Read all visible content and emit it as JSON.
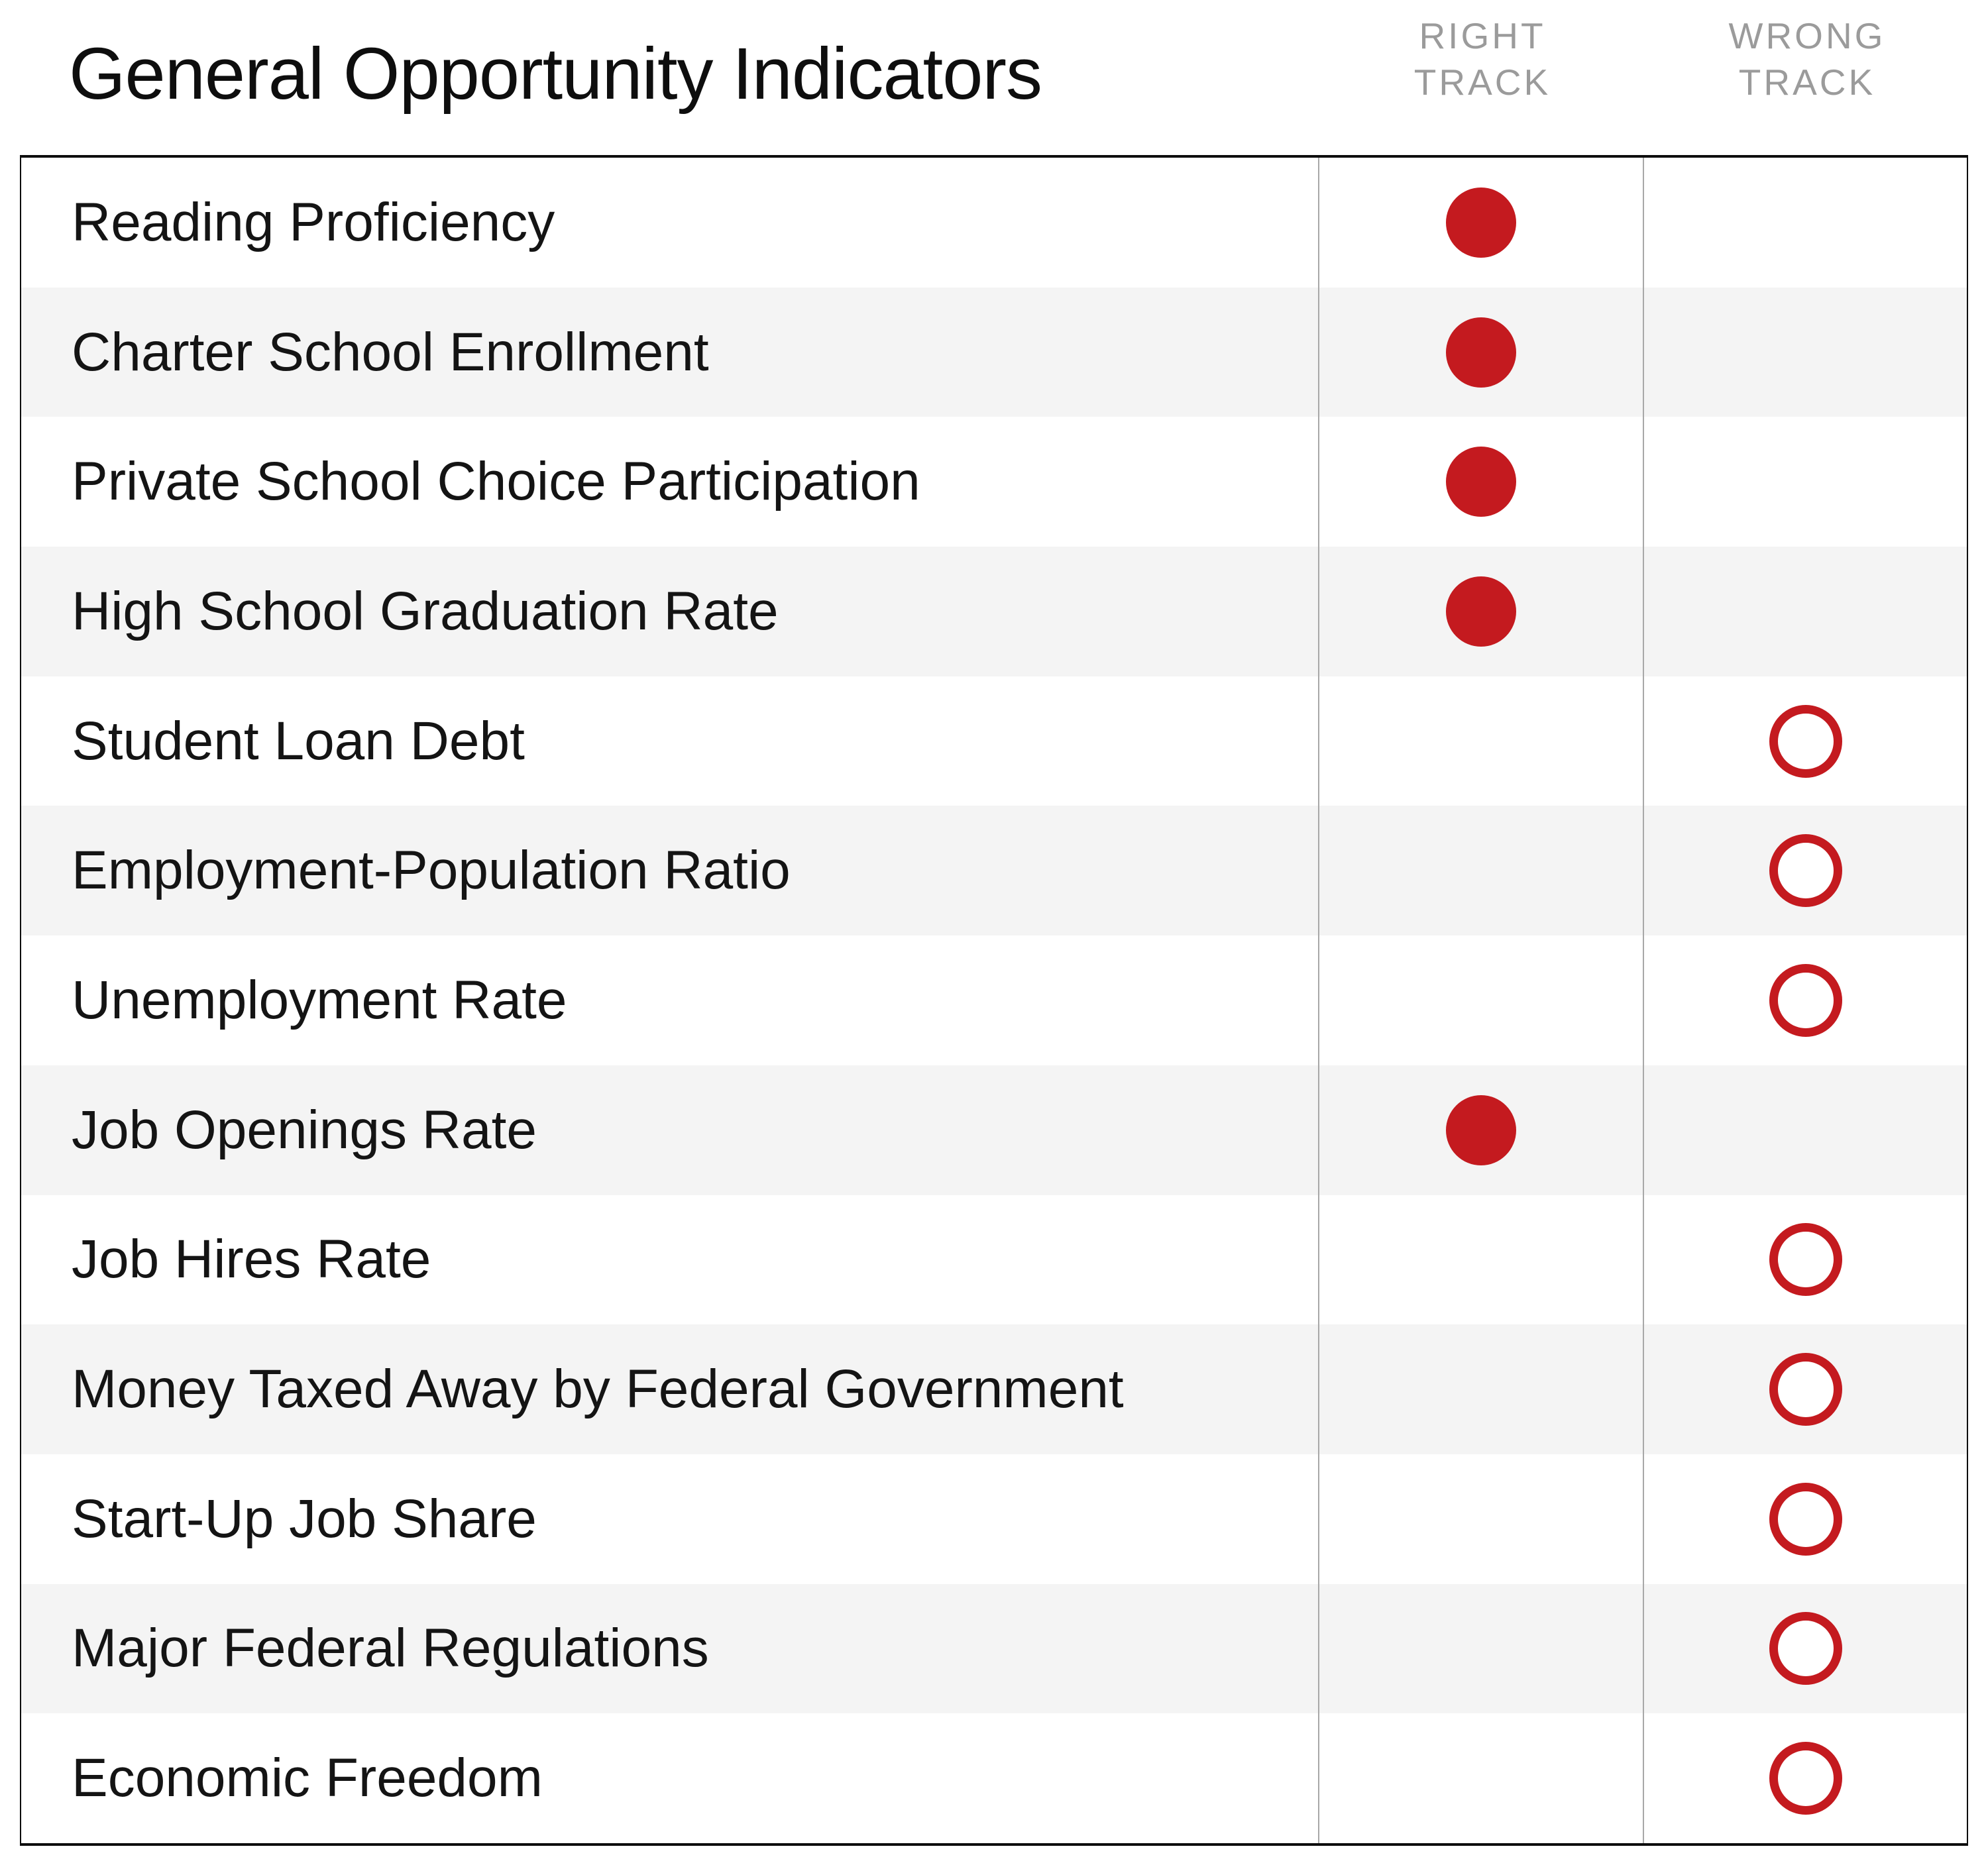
{
  "title": "General Opportunity Indicators",
  "columns": {
    "right": {
      "line1": "RIGHT",
      "line2": "TRACK"
    },
    "wrong": {
      "line1": "WRONG",
      "line2": "TRACK"
    }
  },
  "markers": {
    "right_track_symbol": "filled-circle",
    "wrong_track_symbol": "open-circle"
  },
  "colors": {
    "marker_red": "#C41A1F",
    "row_alt_bg": "#F4F4F4",
    "header_text": "#9B9B9B"
  },
  "chart_data": {
    "type": "table",
    "title": "General Opportunity Indicators",
    "columns": [
      "RIGHT TRACK",
      "WRONG TRACK"
    ],
    "rows": [
      {
        "label": "Reading Proficiency",
        "track": "right"
      },
      {
        "label": "Charter School Enrollment",
        "track": "right"
      },
      {
        "label": "Private School Choice Participation",
        "track": "right"
      },
      {
        "label": "High School Graduation Rate",
        "track": "right"
      },
      {
        "label": "Student Loan Debt",
        "track": "wrong"
      },
      {
        "label": "Employment-Population Ratio",
        "track": "wrong"
      },
      {
        "label": "Unemployment Rate",
        "track": "wrong"
      },
      {
        "label": "Job Openings Rate",
        "track": "right"
      },
      {
        "label": "Job Hires Rate",
        "track": "wrong"
      },
      {
        "label": "Money Taxed Away by Federal Government",
        "track": "wrong"
      },
      {
        "label": "Start-Up Job Share",
        "track": "wrong"
      },
      {
        "label": "Major Federal Regulations",
        "track": "wrong"
      },
      {
        "label": "Economic Freedom",
        "track": "wrong"
      }
    ]
  }
}
